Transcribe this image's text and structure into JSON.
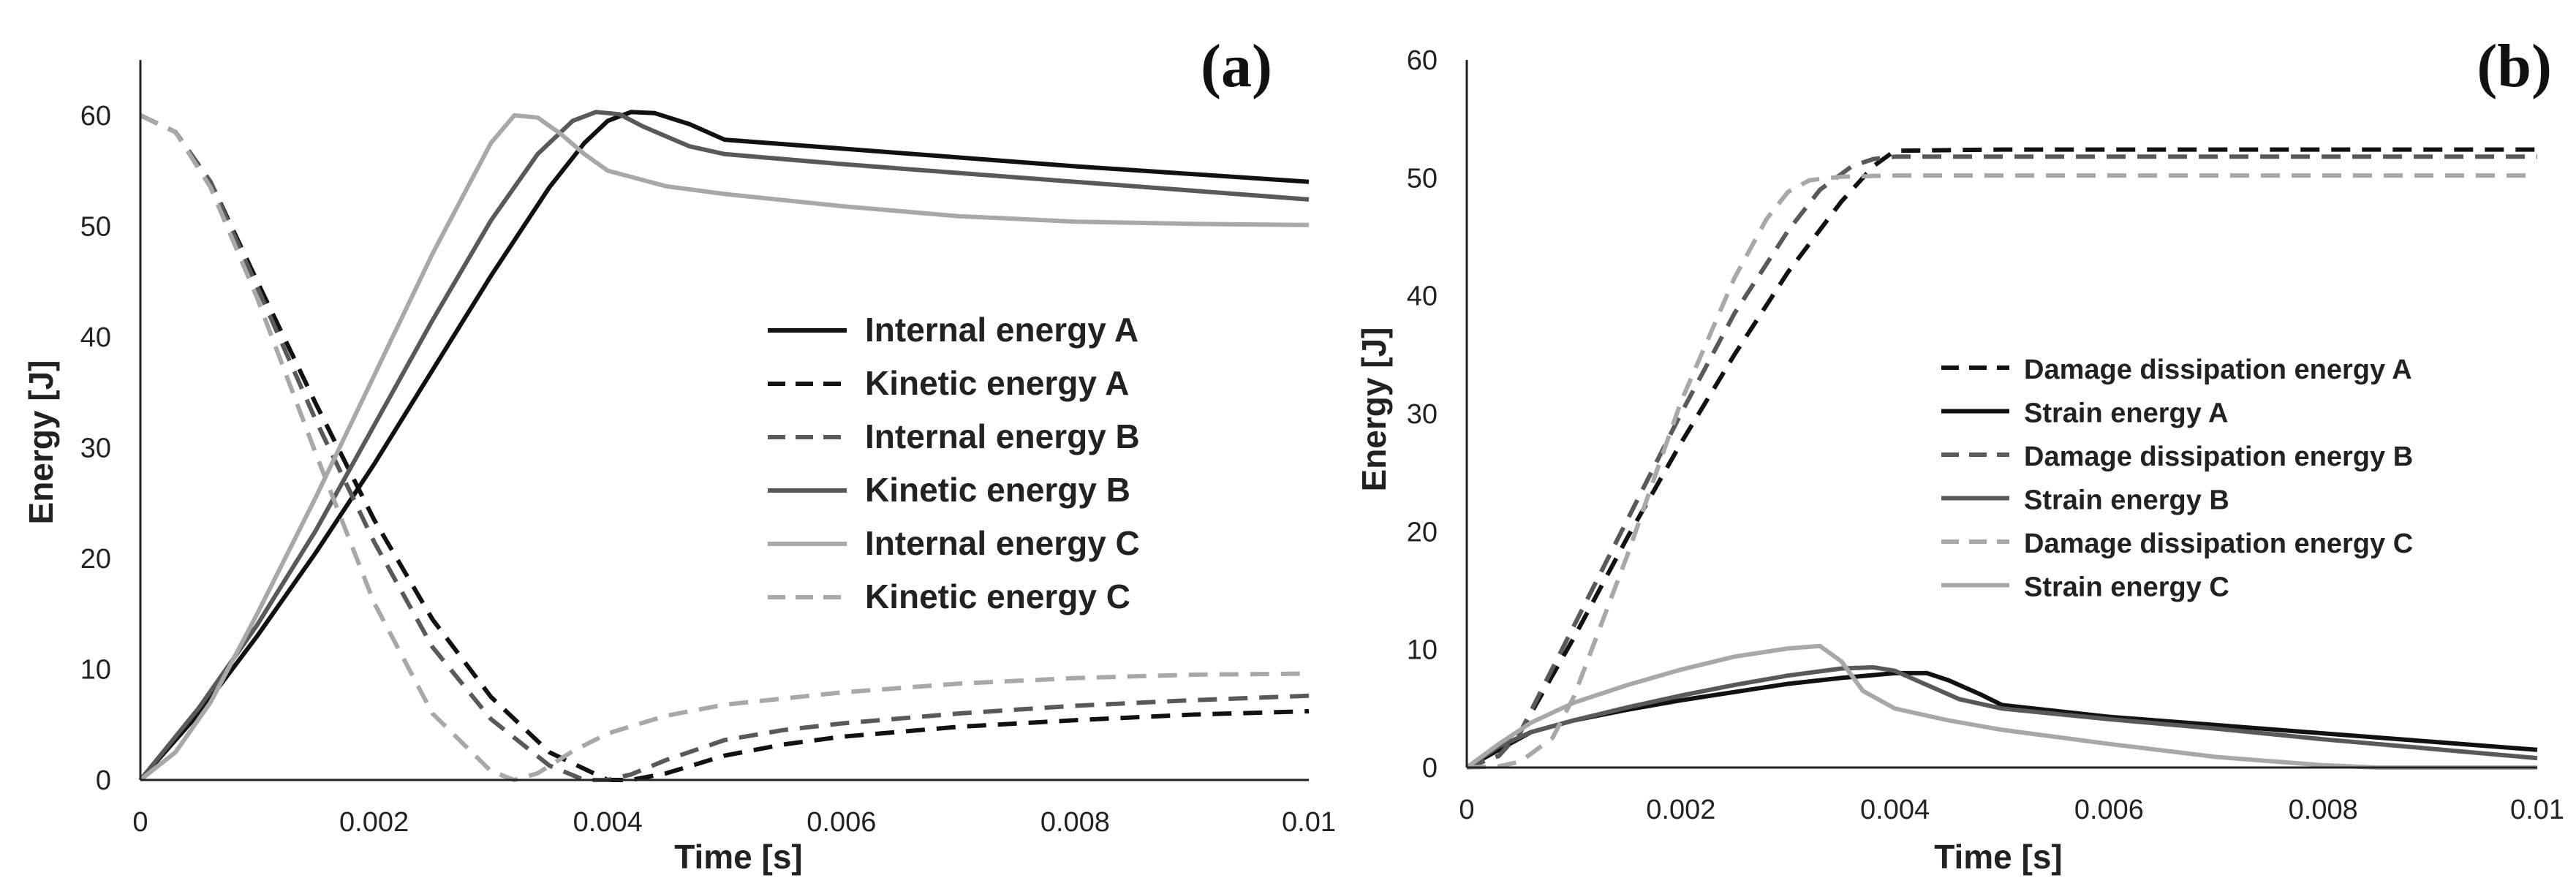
{
  "chart_data": [
    {
      "type": "line",
      "panel_label": "(a)",
      "xlabel": "Time [s]",
      "ylabel": "Energy [J]",
      "xlim": [
        0,
        0.01
      ],
      "ylim": [
        0,
        65
      ],
      "xticks": [
        0,
        0.002,
        0.004,
        0.006,
        0.008,
        0.01
      ],
      "xtick_labels": [
        "0",
        "0.002",
        "0.004",
        "0.006",
        "0.008",
        "0.01"
      ],
      "yticks": [
        0,
        10,
        20,
        30,
        40,
        50,
        60
      ],
      "ytick_labels": [
        "0",
        "10",
        "20",
        "30",
        "40",
        "50",
        "60"
      ],
      "legend_position": "center-right",
      "grid": false,
      "series": [
        {
          "name": "Internal energy A",
          "color": "#111111",
          "dash": "solid",
          "x": [
            0,
            0.0005,
            0.001,
            0.0015,
            0.002,
            0.0025,
            0.003,
            0.0035,
            0.0038,
            0.004,
            0.0042,
            0.0044,
            0.0047,
            0.005,
            0.006,
            0.007,
            0.008,
            0.009,
            0.01
          ],
          "y": [
            0,
            6,
            13,
            20.5,
            28.5,
            37,
            45.5,
            53.5,
            57.5,
            59.5,
            60.3,
            60.2,
            59.2,
            57.8,
            57,
            56.2,
            55.4,
            54.7,
            54
          ]
        },
        {
          "name": "Kinetic energy A",
          "color": "#111111",
          "dash": "dashed",
          "x": [
            0,
            0.0003,
            0.0006,
            0.001,
            0.0015,
            0.002,
            0.0025,
            0.003,
            0.0035,
            0.004,
            0.0042,
            0.0045,
            0.005,
            0.0055,
            0.006,
            0.007,
            0.008,
            0.009,
            0.01
          ],
          "y": [
            60,
            58.5,
            54,
            45,
            34,
            23.5,
            14.5,
            7.5,
            2.5,
            0,
            0,
            0.6,
            2.2,
            3.2,
            3.9,
            4.8,
            5.4,
            5.9,
            6.2
          ]
        },
        {
          "name": "Internal energy B",
          "color": "#595959",
          "dash": "dashed",
          "x": [
            0,
            0.0003,
            0.0006,
            0.001,
            0.0015,
            0.002,
            0.0025,
            0.003,
            0.0035,
            0.0038,
            0.004,
            0.0042,
            0.0045,
            0.005,
            0.0055,
            0.006,
            0.007,
            0.008,
            0.009,
            0.01
          ],
          "y": [
            60,
            58.5,
            54,
            44.5,
            32.5,
            21.5,
            12,
            5.5,
            1.3,
            0,
            0,
            0.5,
            1.8,
            3.6,
            4.5,
            5.1,
            6,
            6.7,
            7.2,
            7.6
          ]
        },
        {
          "name": "Kinetic energy B",
          "color": "#595959",
          "dash": "solid",
          "x": [
            0,
            0.0005,
            0.001,
            0.0015,
            0.002,
            0.0025,
            0.003,
            0.0034,
            0.0037,
            0.0039,
            0.0041,
            0.0043,
            0.0047,
            0.005,
            0.006,
            0.007,
            0.008,
            0.009,
            0.01
          ],
          "y": [
            0,
            6.5,
            14,
            22.5,
            32,
            41.5,
            50.5,
            56.5,
            59.5,
            60.3,
            60.1,
            59,
            57.2,
            56.5,
            55.6,
            54.8,
            54,
            53.2,
            52.4
          ]
        },
        {
          "name": "Internal energy C",
          "color": "#a8a8a8",
          "dash": "solid",
          "x": [
            0,
            0.0003,
            0.0006,
            0.001,
            0.0015,
            0.002,
            0.0025,
            0.0028,
            0.003,
            0.0032,
            0.0034,
            0.0036,
            0.0038,
            0.004,
            0.0045,
            0.005,
            0.006,
            0.007,
            0.008,
            0.009,
            0.01
          ],
          "y": [
            0,
            2.5,
            7,
            15,
            25.5,
            36.5,
            47.5,
            53.5,
            57.5,
            60,
            59.8,
            58.3,
            56.5,
            55,
            53.6,
            52.9,
            51.8,
            50.9,
            50.4,
            50.2,
            50.1
          ]
        },
        {
          "name": "Kinetic energy C",
          "color": "#a8a8a8",
          "dash": "dashed",
          "x": [
            0,
            0.0003,
            0.0006,
            0.001,
            0.0015,
            0.002,
            0.0025,
            0.003,
            0.0032,
            0.0034,
            0.0037,
            0.004,
            0.0045,
            0.005,
            0.006,
            0.007,
            0.008,
            0.009,
            0.01
          ],
          "y": [
            60,
            58.5,
            53.5,
            43.5,
            29.5,
            16,
            6,
            0.8,
            0,
            0.6,
            2.6,
            4.2,
            5.8,
            6.8,
            7.9,
            8.7,
            9.2,
            9.5,
            9.6
          ]
        }
      ]
    },
    {
      "type": "line",
      "panel_label": "(b)",
      "xlabel": "Time [s]",
      "ylabel": "Energy [J]",
      "xlim": [
        0,
        0.01
      ],
      "ylim": [
        0,
        60
      ],
      "xticks": [
        0,
        0.002,
        0.004,
        0.006,
        0.008,
        0.01
      ],
      "xtick_labels": [
        "0",
        "0.002",
        "0.004",
        "0.006",
        "0.008",
        "0.01"
      ],
      "yticks": [
        0,
        10,
        20,
        30,
        40,
        50,
        60
      ],
      "ytick_labels": [
        "0",
        "10",
        "20",
        "30",
        "40",
        "50",
        "60"
      ],
      "legend_position": "center-right",
      "grid": false,
      "series": [
        {
          "name": "Damage dissipation energy A",
          "color": "#111111",
          "dash": "dashed",
          "x": [
            0,
            0.0003,
            0.0005,
            0.001,
            0.0015,
            0.002,
            0.0025,
            0.003,
            0.0035,
            0.0038,
            0.004,
            0.005,
            0.006,
            0.008,
            0.01
          ],
          "y": [
            0,
            1,
            3,
            11,
            19.5,
            27.5,
            35,
            42,
            48,
            51,
            52.3,
            52.4,
            52.4,
            52.4,
            52.4
          ]
        },
        {
          "name": "Strain energy A",
          "color": "#111111",
          "dash": "solid",
          "x": [
            0,
            0.0003,
            0.0006,
            0.001,
            0.0015,
            0.002,
            0.0025,
            0.003,
            0.0035,
            0.004,
            0.0043,
            0.0045,
            0.0048,
            0.005,
            0.006,
            0.007,
            0.008,
            0.009,
            0.01
          ],
          "y": [
            0,
            1.5,
            3,
            4,
            4.9,
            5.7,
            6.4,
            7.1,
            7.6,
            8,
            8,
            7.4,
            6.2,
            5.3,
            4.3,
            3.6,
            2.9,
            2.2,
            1.5
          ]
        },
        {
          "name": "Damage dissipation energy B",
          "color": "#595959",
          "dash": "dashed",
          "x": [
            0,
            0.0003,
            0.0005,
            0.001,
            0.0015,
            0.002,
            0.0025,
            0.003,
            0.0033,
            0.0036,
            0.0038,
            0.004,
            0.005,
            0.006,
            0.008,
            0.01
          ],
          "y": [
            0,
            1,
            3,
            12,
            21,
            30,
            38.5,
            45.5,
            49,
            51,
            51.6,
            51.8,
            51.8,
            51.8,
            51.8,
            51.8
          ]
        },
        {
          "name": "Strain energy B",
          "color": "#595959",
          "dash": "solid",
          "x": [
            0,
            0.0003,
            0.0006,
            0.001,
            0.0015,
            0.002,
            0.0025,
            0.003,
            0.0035,
            0.0038,
            0.004,
            0.0043,
            0.0046,
            0.005,
            0.006,
            0.007,
            0.008,
            0.009,
            0.01
          ],
          "y": [
            0,
            1.8,
            3,
            4,
            5.1,
            6.1,
            7,
            7.8,
            8.4,
            8.5,
            8.2,
            7,
            5.8,
            5,
            4.1,
            3.3,
            2.4,
            1.6,
            0.8
          ]
        },
        {
          "name": "Damage dissipation energy C",
          "color": "#a8a8a8",
          "dash": "dashed",
          "x": [
            0,
            0.0003,
            0.0005,
            0.0008,
            0.001,
            0.0015,
            0.002,
            0.0025,
            0.0028,
            0.003,
            0.0032,
            0.0035,
            0.004,
            0.005,
            0.006,
            0.008,
            0.01
          ],
          "y": [
            0,
            0.1,
            0.5,
            2.5,
            6,
            18,
            31,
            41.5,
            46.5,
            48.8,
            49.8,
            50.1,
            50.2,
            50.2,
            50.2,
            50.2,
            50.2
          ]
        },
        {
          "name": "Strain energy C",
          "color": "#a8a8a8",
          "dash": "solid",
          "x": [
            0,
            0.0003,
            0.0006,
            0.001,
            0.0015,
            0.002,
            0.0025,
            0.003,
            0.0033,
            0.0035,
            0.0037,
            0.004,
            0.0045,
            0.005,
            0.006,
            0.007,
            0.008,
            0.0085,
            0.009,
            0.01
          ],
          "y": [
            0,
            2,
            3.8,
            5.5,
            7,
            8.3,
            9.4,
            10.1,
            10.3,
            9,
            6.5,
            5,
            4,
            3.2,
            2,
            0.9,
            0.2,
            0,
            0,
            0
          ]
        }
      ]
    }
  ]
}
